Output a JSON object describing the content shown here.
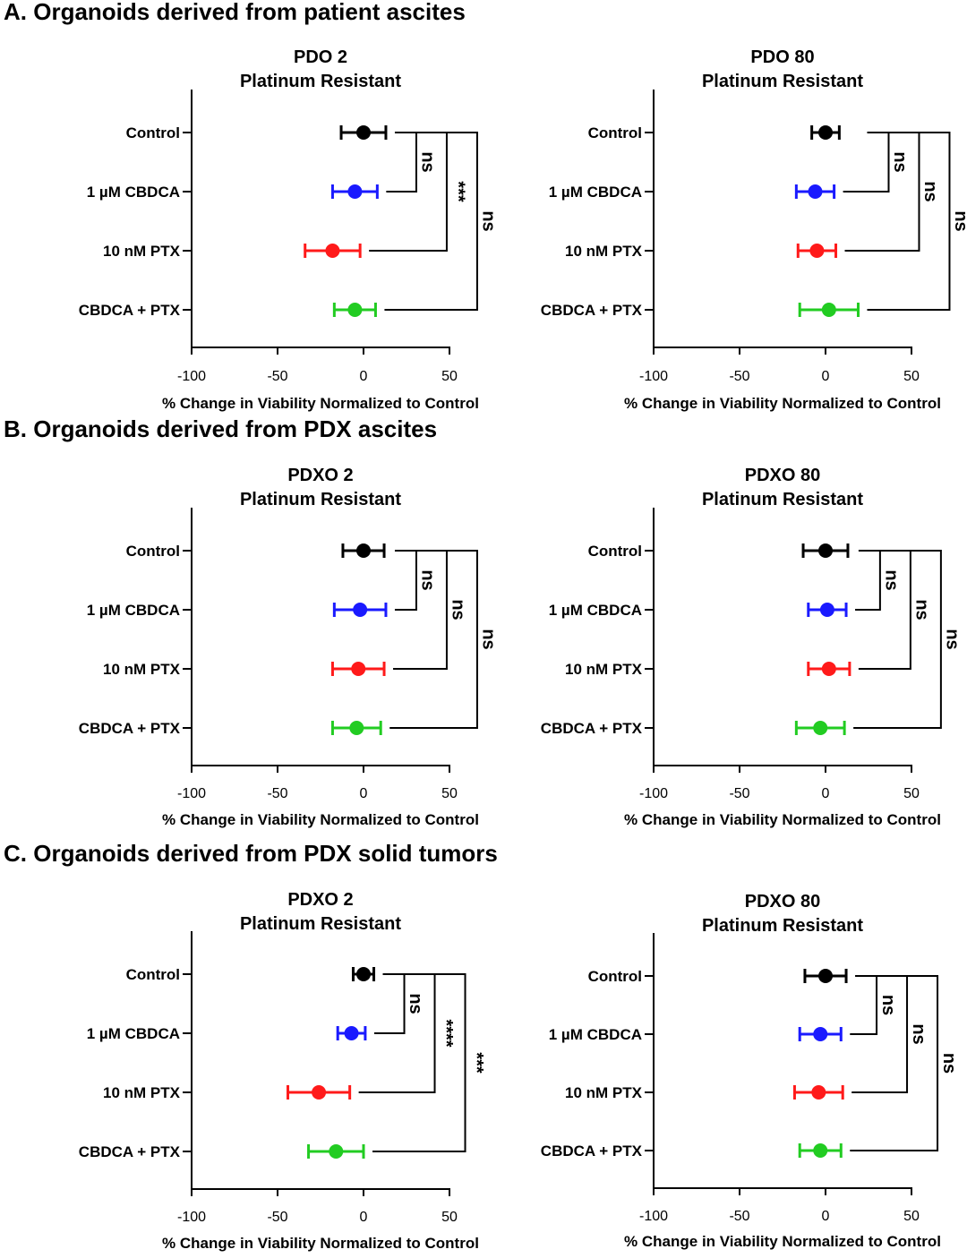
{
  "figure": {
    "section_titles": [
      "A. Organoids derived from patient ascites",
      "B. Organoids derived from PDX ascites",
      "C. Organoids derived from PDX solid tumors"
    ]
  },
  "chart_data": [
    {
      "type": "scatter",
      "section": "A",
      "title_line1": "PDO 2",
      "title_line2": "Platinum Resistant",
      "xlabel": "% Change in Viability Normalized to Control",
      "xlim": [
        -100,
        50
      ],
      "xticks": [
        "-100",
        "-50",
        "0",
        "50"
      ],
      "categories": [
        "Control",
        "1 µM CBDCA",
        "10 nM PTX",
        "CBDCA + PTX"
      ],
      "values": [
        0,
        -5,
        -18,
        -5
      ],
      "error": [
        13,
        13,
        16,
        12
      ],
      "colors": [
        "#000000",
        "#1a1aff",
        "#ff1a1a",
        "#22cc22"
      ],
      "comparisons": [
        {
          "from": 0,
          "to": 1,
          "label": "ns"
        },
        {
          "from": 0,
          "to": 2,
          "label": "***"
        },
        {
          "from": 0,
          "to": 3,
          "label": "ns"
        }
      ]
    },
    {
      "type": "scatter",
      "section": "A",
      "title_line1": "PDO 80",
      "title_line2": "Platinum Resistant",
      "xlabel": "% Change in Viability Normalized to Control",
      "xlim": [
        -100,
        50
      ],
      "xticks": [
        "-100",
        "-50",
        "0",
        "50"
      ],
      "categories": [
        "Control",
        "1 µM CBDCA",
        "10 nM PTX",
        "CBDCA + PTX"
      ],
      "values": [
        0,
        -6,
        -5,
        2
      ],
      "error": [
        8,
        11,
        11,
        17
      ],
      "colors": [
        "#000000",
        "#1a1aff",
        "#ff1a1a",
        "#22cc22"
      ],
      "comparisons": [
        {
          "from": 0,
          "to": 1,
          "label": "ns"
        },
        {
          "from": 0,
          "to": 2,
          "label": "ns"
        },
        {
          "from": 0,
          "to": 3,
          "label": "ns"
        }
      ]
    },
    {
      "type": "scatter",
      "section": "B",
      "title_line1": "PDXO 2",
      "title_line2": "Platinum Resistant",
      "xlabel": "% Change in Viability Normalized to Control",
      "xlim": [
        -100,
        50
      ],
      "xticks": [
        "-100",
        "-50",
        "0",
        "50"
      ],
      "categories": [
        "Control",
        "1 µM CBDCA",
        "10 nM PTX",
        "CBDCA + PTX"
      ],
      "values": [
        0,
        -2,
        -3,
        -4
      ],
      "error": [
        12,
        15,
        15,
        14
      ],
      "colors": [
        "#000000",
        "#1a1aff",
        "#ff1a1a",
        "#22cc22"
      ],
      "comparisons": [
        {
          "from": 0,
          "to": 1,
          "label": "ns"
        },
        {
          "from": 0,
          "to": 2,
          "label": "ns"
        },
        {
          "from": 0,
          "to": 3,
          "label": "ns"
        }
      ]
    },
    {
      "type": "scatter",
      "section": "B",
      "title_line1": "PDXO 80",
      "title_line2": "Platinum Resistant",
      "xlabel": "% Change in Viability Normalized to Control",
      "xlim": [
        -100,
        50
      ],
      "xticks": [
        "-100",
        "-50",
        "0",
        "50"
      ],
      "categories": [
        "Control",
        "1 µM CBDCA",
        "10 nM PTX",
        "CBDCA + PTX"
      ],
      "values": [
        0,
        1,
        2,
        -3
      ],
      "error": [
        13,
        11,
        12,
        14
      ],
      "colors": [
        "#000000",
        "#1a1aff",
        "#ff1a1a",
        "#22cc22"
      ],
      "comparisons": [
        {
          "from": 0,
          "to": 1,
          "label": "ns"
        },
        {
          "from": 0,
          "to": 2,
          "label": "ns"
        },
        {
          "from": 0,
          "to": 3,
          "label": "ns"
        }
      ]
    },
    {
      "type": "scatter",
      "section": "C",
      "title_line1": "PDXO 2",
      "title_line2": "Platinum Resistant",
      "xlabel": "% Change in Viability Normalized to Control",
      "xlim": [
        -100,
        50
      ],
      "xticks": [
        "-100",
        "-50",
        "0",
        "50"
      ],
      "categories": [
        "Control",
        "1 µM CBDCA",
        "10 nM PTX",
        "CBDCA + PTX"
      ],
      "values": [
        0,
        -7,
        -26,
        -16
      ],
      "error": [
        6,
        8,
        18,
        16
      ],
      "colors": [
        "#000000",
        "#1a1aff",
        "#ff1a1a",
        "#22cc22"
      ],
      "comparisons": [
        {
          "from": 0,
          "to": 1,
          "label": "ns"
        },
        {
          "from": 0,
          "to": 2,
          "label": "****"
        },
        {
          "from": 0,
          "to": 3,
          "label": "***"
        }
      ]
    },
    {
      "type": "scatter",
      "section": "C",
      "title_line1": "PDXO 80",
      "title_line2": "Platinum Resistant",
      "xlabel": "% Change in Viability Normalized to Control",
      "xlim": [
        -100,
        50
      ],
      "xticks": [
        "-100",
        "-50",
        "0",
        "50"
      ],
      "categories": [
        "Control",
        "1 µM CBDCA",
        "10 nM PTX",
        "CBDCA + PTX"
      ],
      "values": [
        0,
        -3,
        -4,
        -3
      ],
      "error": [
        12,
        12,
        14,
        12
      ],
      "colors": [
        "#000000",
        "#1a1aff",
        "#ff1a1a",
        "#22cc22"
      ],
      "comparisons": [
        {
          "from": 0,
          "to": 1,
          "label": "ns"
        },
        {
          "from": 0,
          "to": 2,
          "label": "ns"
        },
        {
          "from": 0,
          "to": 3,
          "label": "ns"
        }
      ]
    }
  ]
}
